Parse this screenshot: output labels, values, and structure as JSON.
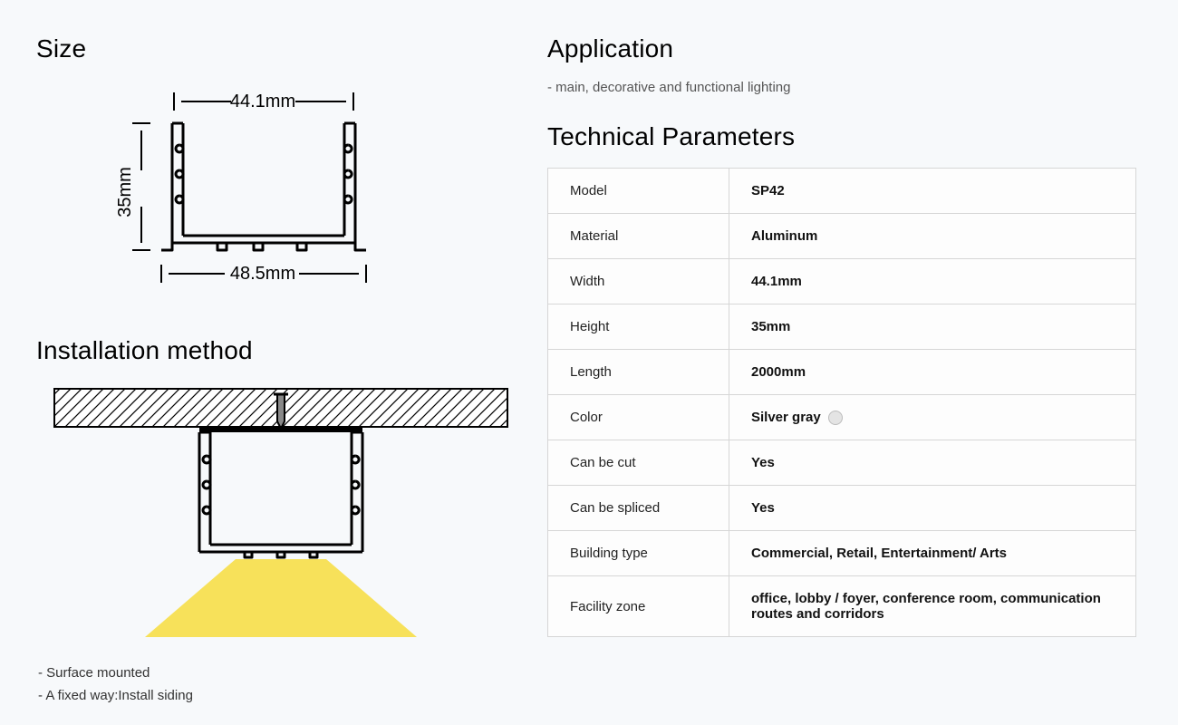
{
  "left": {
    "size_heading": "Size",
    "dim_top": "44.1mm",
    "dim_side": "35mm",
    "dim_bottom": "48.5mm",
    "install_heading": "Installation method",
    "bullets": [
      "- Surface mounted",
      "- A fixed way:Install siding"
    ]
  },
  "right": {
    "app_heading": "Application",
    "app_sub": "- main, decorative and functional lighting",
    "tech_heading": "Technical Parameters",
    "rows": [
      {
        "k": "Model",
        "v": "SP42"
      },
      {
        "k": "Material",
        "v": "Aluminum"
      },
      {
        "k": "Width",
        "v": "44.1mm"
      },
      {
        "k": "Height",
        "v": "35mm"
      },
      {
        "k": "Length",
        "v": "2000mm"
      },
      {
        "k": "Color",
        "v": "Silver gray",
        "swatch": "#e4e4e4"
      },
      {
        "k": "Can be cut",
        "v": "Yes"
      },
      {
        "k": "Can be spliced",
        "v": "Yes"
      },
      {
        "k": "Building type",
        "v": "Commercial, Retail, Entertainment/ Arts"
      },
      {
        "k": "Facility zone",
        "v": "office, lobby / foyer, conference room, communication routes and corridors"
      }
    ]
  },
  "style": {
    "bg": "#f7f9fb",
    "heading_fontsize": 28,
    "table_border": "#d6d6d6",
    "light_color": "#f7e15a",
    "profile_stroke": "#000000"
  }
}
